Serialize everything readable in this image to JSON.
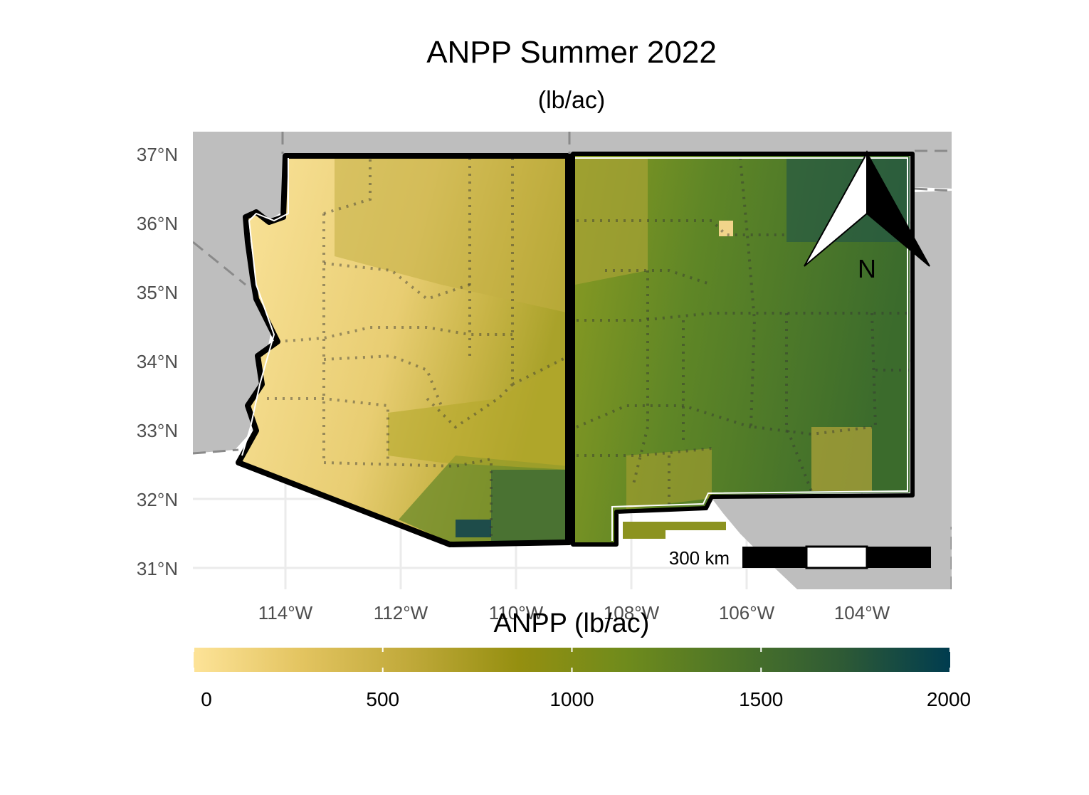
{
  "title": "ANPP Summer 2022",
  "subtitle": "(lb/ac)",
  "axes": {
    "lat_labels": [
      "37°N",
      "36°N",
      "35°N",
      "34°N",
      "33°N",
      "32°N",
      "31°N"
    ],
    "lon_labels": [
      "114°W",
      "112°W",
      "110°W",
      "108°W",
      "106°W",
      "104°W"
    ]
  },
  "regions": {
    "west_state_color": "#edd27a",
    "east_state_color": "#52801f",
    "background_land_color": "#bebebe",
    "grid_color": "#ebebeb"
  },
  "north_arrow": {
    "label": "N",
    "icon": "north-arrow-icon"
  },
  "scale_bar": {
    "label": "300 km"
  },
  "legend": {
    "title": "ANPP (lb/ac)",
    "tick_labels": [
      "0",
      "500",
      "1000",
      "1500",
      "2000"
    ],
    "ticks": [
      0,
      500,
      1000,
      1500,
      2000
    ],
    "range": [
      0,
      2000
    ],
    "colors": [
      "#fde398",
      "#e3c460",
      "#c0a93a",
      "#958f10",
      "#6f8b1c",
      "#4c7428",
      "#2e5a35",
      "#003c4f"
    ]
  }
}
